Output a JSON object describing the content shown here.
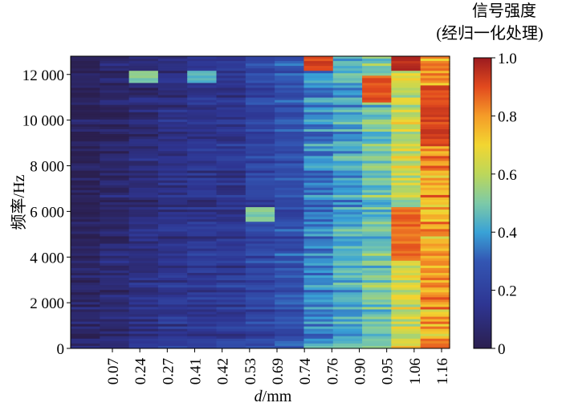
{
  "chart_data": {
    "type": "heatmap",
    "title": "",
    "xlabel_italic": "d",
    "xlabel_unit": "/mm",
    "ylabel": "频率/Hz",
    "x_categories": [
      "0.07",
      "0.24",
      "0.27",
      "0.41",
      "0.42",
      "0.53",
      "0.69",
      "0.74",
      "0.76",
      "0.90",
      "0.95",
      "1.06",
      "1.16"
    ],
    "y_ticks": [
      {
        "value": 0,
        "label": "0"
      },
      {
        "value": 2000,
        "label": "2 000"
      },
      {
        "value": 4000,
        "label": "4 000"
      },
      {
        "value": 6000,
        "label": "6 000"
      },
      {
        "value": 8000,
        "label": "8 000"
      },
      {
        "value": 10000,
        "label": "10 000"
      },
      {
        "value": 12000,
        "label": "12 000"
      }
    ],
    "ylim": [
      0,
      12800
    ],
    "colorbar": {
      "title_line1": "信号强度",
      "title_line2": "(经归一化处理)",
      "range": [
        0,
        1
      ],
      "ticks": [
        {
          "value": 0,
          "label": "0"
        },
        {
          "value": 0.2,
          "label": "0.2"
        },
        {
          "value": 0.4,
          "label": "0.4"
        },
        {
          "value": 0.6,
          "label": "0.6"
        },
        {
          "value": 0.8,
          "label": "0.8"
        },
        {
          "value": 1.0,
          "label": "1.0"
        }
      ],
      "colormap": "jet-like"
    },
    "column_mean_intensity": [
      0.05,
      0.08,
      0.12,
      0.15,
      0.17,
      0.18,
      0.22,
      0.26,
      0.36,
      0.42,
      0.48,
      0.62,
      0.78
    ],
    "hotspots": [
      {
        "x": "0.76",
        "y_range": [
          12200,
          12800
        ],
        "value": 0.95
      },
      {
        "x": "0.95",
        "y_range": [
          10800,
          11900
        ],
        "value": 0.92
      },
      {
        "x": "1.06",
        "y_range": [
          3800,
          6200
        ],
        "value": 0.9
      },
      {
        "x": "1.06",
        "y_range": [
          12200,
          12800
        ],
        "value": 1.0
      },
      {
        "x": "1.16",
        "y_range": [
          9000,
          11500
        ],
        "value": 0.95
      },
      {
        "x": "0.69",
        "y_range": [
          5500,
          6200
        ],
        "value": 0.55
      },
      {
        "x": "0.27",
        "y_range": [
          11600,
          12200
        ],
        "value": 0.55
      },
      {
        "x": "0.42",
        "y_range": [
          11600,
          12200
        ],
        "value": 0.5
      }
    ]
  }
}
